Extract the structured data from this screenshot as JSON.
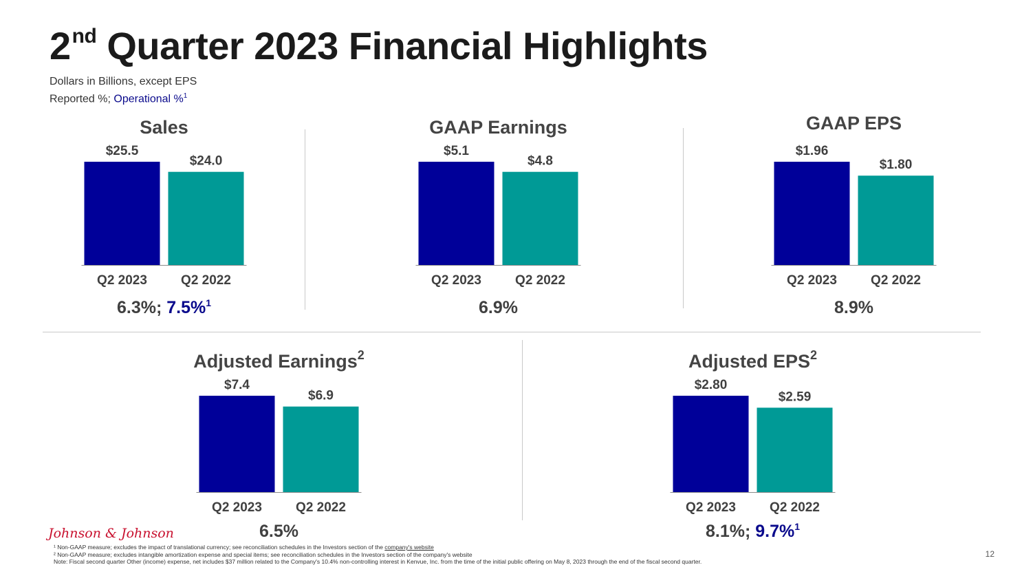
{
  "header": {
    "title_pre": "2",
    "title_sup": "nd",
    "title_post": " Quarter 2023 Financial Highlights",
    "subtitle_line1": "Dollars in Billions, except EPS",
    "subtitle_reported": "Reported %; ",
    "subtitle_operational": "Operational %",
    "subtitle_op_sup": "1"
  },
  "colors": {
    "q2_2023": "#000099",
    "q2_2022": "#009a96",
    "operational_text": "#0a0a8c"
  },
  "chart_data": [
    {
      "type": "bar",
      "title": "Sales",
      "title_sup": "",
      "categories": [
        "Q2 2023",
        "Q2 2022"
      ],
      "values": [
        25.5,
        24.0
      ],
      "value_labels": [
        "$25.5",
        "$24.0"
      ],
      "growth_reported": "6.3%",
      "growth_operational": "7.5%",
      "growth_sup": "1"
    },
    {
      "type": "bar",
      "title": "GAAP Earnings",
      "title_sup": "",
      "categories": [
        "Q2 2023",
        "Q2 2022"
      ],
      "values": [
        5.1,
        4.8
      ],
      "value_labels": [
        "$5.1",
        "$4.8"
      ],
      "growth_reported": "6.9%",
      "growth_operational": "",
      "growth_sup": ""
    },
    {
      "type": "bar",
      "title": "GAAP EPS",
      "title_sup": "",
      "categories": [
        "Q2 2023",
        "Q2 2022"
      ],
      "values": [
        1.96,
        1.8
      ],
      "value_labels": [
        "$1.96",
        "$1.80"
      ],
      "growth_reported": "8.9%",
      "growth_operational": "",
      "growth_sup": ""
    },
    {
      "type": "bar",
      "title": "Adjusted Earnings",
      "title_sup": "2",
      "categories": [
        "Q2 2023",
        "Q2 2022"
      ],
      "values": [
        7.4,
        6.9
      ],
      "value_labels": [
        "$7.4",
        "$6.9"
      ],
      "growth_reported": "6.5%",
      "growth_operational": "",
      "growth_sup": ""
    },
    {
      "type": "bar",
      "title": "Adjusted EPS",
      "title_sup": "2",
      "categories": [
        "Q2 2023",
        "Q2 2022"
      ],
      "values": [
        2.8,
        2.59
      ],
      "value_labels": [
        "$2.80",
        "$2.59"
      ],
      "growth_reported": "8.1%",
      "growth_operational": "9.7%",
      "growth_sup": "1"
    }
  ],
  "footer": {
    "logo": "Johnson & Johnson",
    "note1_pre": "¹ Non-GAAP measure; excludes the impact of translational currency; see reconciliation schedules in the Investors section of the ",
    "note1_link": "company's website",
    "note2": "² Non-GAAP measure; excludes intangible amortization expense and special items; see reconciliation schedules in the Investors section of the company's website",
    "note3": "Note: Fiscal second quarter Other (income) expense, net includes $37 million related to the Company's 10.4% non-controlling interest in Kenvue, Inc. from the time of the initial public offering on May 8, 2023 through the end of the fiscal second quarter.",
    "page_number": "12"
  }
}
